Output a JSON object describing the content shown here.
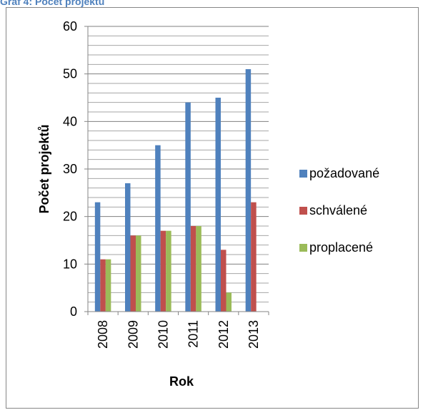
{
  "caption": "Graf 4: Počet projektů",
  "chart_data": {
    "type": "bar",
    "categories": [
      "2008",
      "2009",
      "2010",
      "2011",
      "2012",
      "2013"
    ],
    "series": [
      {
        "name": "požadované",
        "values": [
          23,
          27,
          35,
          44,
          45,
          51
        ],
        "color": "#4f81bd"
      },
      {
        "name": "schválené",
        "values": [
          11,
          16,
          17,
          18,
          13,
          23
        ],
        "color": "#c0504d"
      },
      {
        "name": "proplacené",
        "values": [
          11,
          16,
          17,
          18,
          4,
          0
        ],
        "color": "#9bbb59"
      }
    ],
    "xlabel": "Rok",
    "ylabel": "Počet projektů",
    "ylim": [
      0,
      60
    ],
    "yticks": [
      0,
      10,
      20,
      30,
      40,
      50,
      60
    ],
    "grid": true,
    "legend_position": "right"
  }
}
